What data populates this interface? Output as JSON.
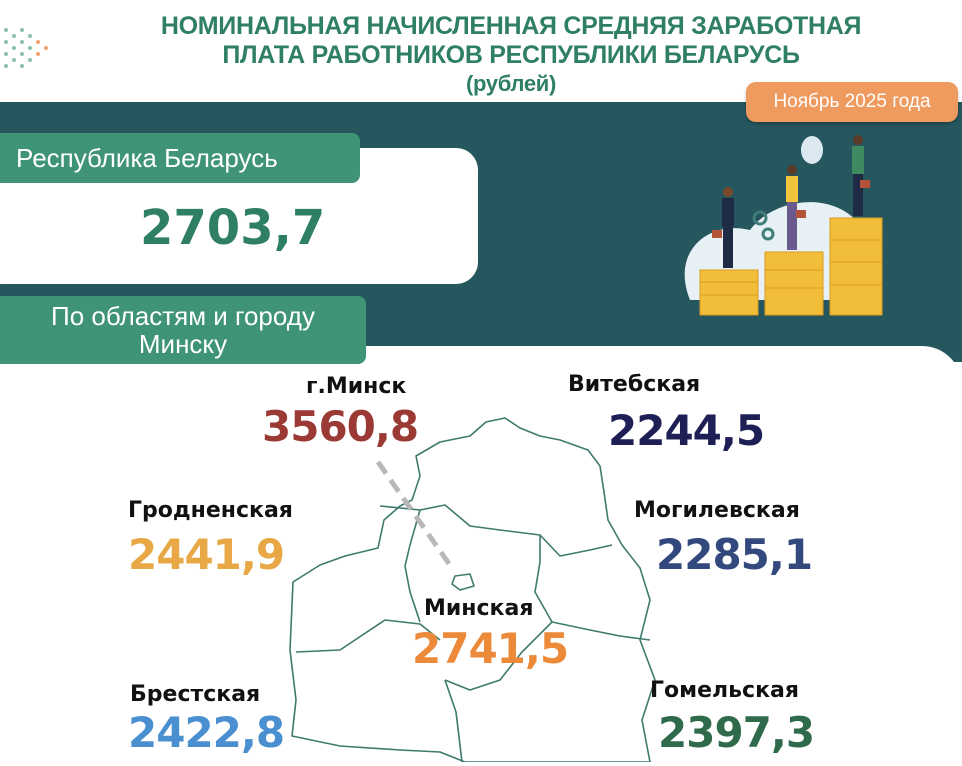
{
  "header": {
    "title_line1": "НОМИНАЛЬНАЯ НАЧИСЛЕННАЯ СРЕДНЯЯ ЗАРАБОТНАЯ",
    "title_line2": "ПЛАТА РАБОТНИКОВ РЕСПУБЛИКИ БЕЛАРУСЬ",
    "unit": "(рублей)",
    "period": "Ноябрь 2025 года"
  },
  "republic": {
    "label": "Республика Беларусь",
    "value": "2703,7"
  },
  "regions_header": {
    "line1": "По областям и городу",
    "line2": "Минску"
  },
  "regions": [
    {
      "name": "г.Минск",
      "value": "3560,8",
      "color": "#9b3a35"
    },
    {
      "name": "Витебская",
      "value": "2244,5",
      "color": "#1e1f55"
    },
    {
      "name": "Гродненская",
      "value": "2441,9",
      "color": "#e8a845"
    },
    {
      "name": "Могилевская",
      "value": "2285,1",
      "color": "#33497e"
    },
    {
      "name": "Минская",
      "value": "2741,5",
      "color": "#ec8a3a"
    },
    {
      "name": "Брестская",
      "value": "2422,8",
      "color": "#4a8fd0"
    },
    {
      "name": "Гомельская",
      "value": "2397,3",
      "color": "#2f6b4b"
    }
  ],
  "colors": {
    "accent": "#2f7e66",
    "band": "#26565e",
    "label": "#3e9475",
    "date_badge": "#ef9a5e",
    "map_stroke": "#3e7a6e"
  }
}
